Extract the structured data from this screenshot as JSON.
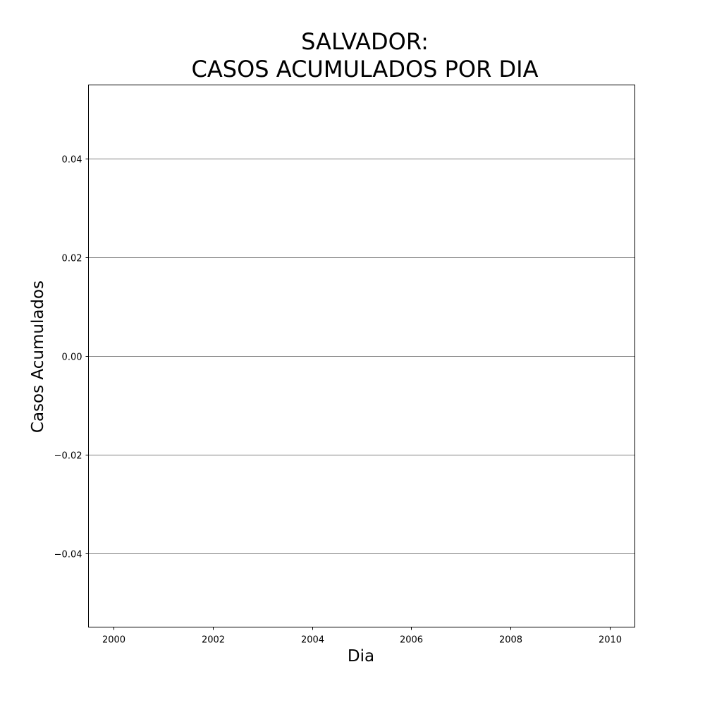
{
  "chart_data": {
    "type": "line",
    "title_lines": [
      "SALVADOR:",
      "CASOS ACUMULADOS POR DIA"
    ],
    "xlabel": "Dia",
    "ylabel": "Casos Acumulados",
    "xlim": [
      1999.5,
      2010.5
    ],
    "ylim": [
      -0.055,
      0.055
    ],
    "x_ticks": [
      2000,
      2002,
      2004,
      2006,
      2008,
      2010
    ],
    "x_tick_labels": [
      "2000",
      "2002",
      "2004",
      "2006",
      "2008",
      "2010"
    ],
    "y_ticks": [
      0.04,
      0.02,
      0.0,
      -0.02,
      -0.04
    ],
    "y_tick_labels": [
      "0.04",
      "0.02",
      "0.00",
      "−0.02",
      "−0.04"
    ],
    "grid": "horizontal",
    "grid_color": "#808080",
    "series": []
  }
}
